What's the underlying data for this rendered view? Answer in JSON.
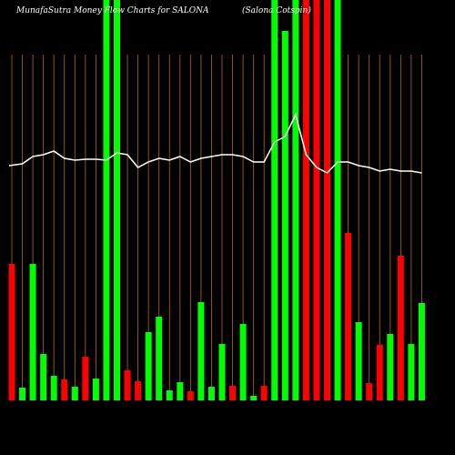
{
  "chart_data": {
    "type": "bar",
    "title": "MunafaSutra  Money Flow  Charts for SALONA",
    "subtitle": "(Salona Cotspin)",
    "ylim": [
      0,
      440
    ],
    "values": [
      150,
      14,
      150,
      51,
      27,
      23,
      15,
      48,
      24,
      440,
      440,
      33,
      21,
      75,
      92,
      11,
      20,
      10,
      108,
      15,
      62,
      16,
      84,
      5,
      16,
      440,
      406,
      440,
      440,
      440,
      440,
      440,
      184,
      86,
      19,
      61,
      73,
      159,
      62,
      107
    ],
    "colors": [
      "#ff0000",
      "#00ff00",
      "#00ff00",
      "#00ff00",
      "#00ff00",
      "#ff0000",
      "#00ff00",
      "#ff0000",
      "#00ff00",
      "#00ff00",
      "#00ff00",
      "#ff0000",
      "#ff0000",
      "#00ff00",
      "#00ff00",
      "#00ff00",
      "#00ff00",
      "#ff0000",
      "#00ff00",
      "#00ff00",
      "#00ff00",
      "#ff0000",
      "#00ff00",
      "#00ff00",
      "#ff0000",
      "#00ff00",
      "#00ff00",
      "#00ff00",
      "#ff0000",
      "#ff0000",
      "#ff0000",
      "#00ff00",
      "#ff0000",
      "#00ff00",
      "#ff0000",
      "#ff0000",
      "#00ff00",
      "#ff0000",
      "#00ff00",
      "#00ff00"
    ],
    "line_values": [
      258,
      260,
      268,
      270,
      274,
      266,
      264,
      265,
      265,
      264,
      272,
      270,
      256,
      262,
      266,
      264,
      268,
      262,
      266,
      268,
      270,
      270,
      268,
      262,
      262,
      284,
      290,
      314,
      270,
      256,
      250,
      262,
      262,
      258,
      256,
      252,
      254,
      252,
      252,
      250
    ],
    "line_color": "#ffffff",
    "grid_color": "#b36b00"
  }
}
